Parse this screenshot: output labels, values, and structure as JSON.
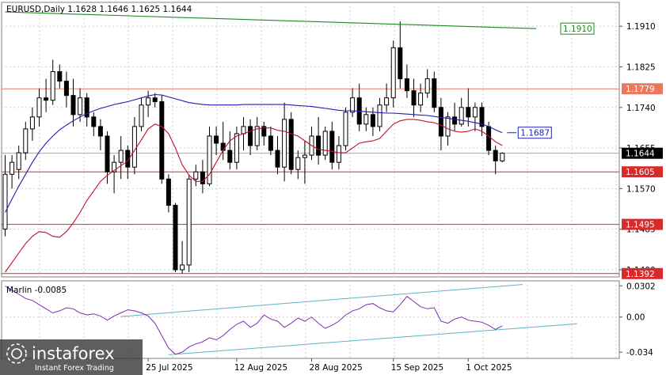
{
  "chart_data": [
    {
      "type": "candlestick",
      "header": "EURUSD,Daily  1.1628 1.1646 1.1625 1.1644",
      "y_axis_ticks": [
        "1.1910",
        "1.1825",
        "1.1740",
        "1.1655",
        "1.1570",
        "1.1485",
        "1.1400"
      ],
      "ylim": [
        1.1385,
        1.196
      ],
      "x_tick_labels": [
        "25 Jul 2025",
        "12 Aug 2025",
        "28 Aug 2025",
        "15 Sep 2025",
        "1 Oct 2025"
      ],
      "x_tick_index": [
        21,
        34,
        45,
        57,
        68
      ],
      "candles": [
        [
          1.1485,
          1.164,
          1.147,
          1.16
        ],
        [
          1.16,
          1.164,
          1.157,
          1.1625
        ],
        [
          1.161,
          1.166,
          1.159,
          1.1645
        ],
        [
          1.1645,
          1.171,
          1.163,
          1.1695
        ],
        [
          1.1695,
          1.174,
          1.167,
          1.172
        ],
        [
          1.172,
          1.178,
          1.17,
          1.176
        ],
        [
          1.176,
          1.18,
          1.173,
          1.1755
        ],
        [
          1.1755,
          1.184,
          1.1745,
          1.1815
        ],
        [
          1.1815,
          1.183,
          1.178,
          1.1795
        ],
        [
          1.1795,
          1.1815,
          1.174,
          1.1765
        ],
        [
          1.1765,
          1.18,
          1.17,
          1.1725
        ],
        [
          1.1725,
          1.178,
          1.171,
          1.176
        ],
        [
          1.176,
          1.177,
          1.17,
          1.172
        ],
        [
          1.172,
          1.173,
          1.168,
          1.17
        ],
        [
          1.17,
          1.1715,
          1.165,
          1.168
        ],
        [
          1.168,
          1.169,
          1.158,
          1.1605
        ],
        [
          1.1605,
          1.164,
          1.156,
          1.1625
        ],
        [
          1.1625,
          1.168,
          1.159,
          1.165
        ],
        [
          1.165,
          1.166,
          1.159,
          1.1615
        ],
        [
          1.1615,
          1.172,
          1.16,
          1.17
        ],
        [
          1.17,
          1.176,
          1.169,
          1.1745
        ],
        [
          1.1745,
          1.1775,
          1.172,
          1.176
        ],
        [
          1.176,
          1.177,
          1.174,
          1.1752
        ],
        [
          1.1752,
          1.1765,
          1.158,
          1.159
        ],
        [
          1.159,
          1.16,
          1.152,
          1.1535
        ],
        [
          1.1535,
          1.154,
          1.1395,
          1.14
        ],
        [
          1.14,
          1.146,
          1.1392,
          1.141
        ],
        [
          1.141,
          1.16,
          1.1395,
          1.159
        ],
        [
          1.159,
          1.162,
          1.1575,
          1.1605
        ],
        [
          1.1605,
          1.163,
          1.156,
          1.158
        ],
        [
          1.158,
          1.17,
          1.1575,
          1.168
        ],
        [
          1.168,
          1.17,
          1.164,
          1.1665
        ],
        [
          1.1665,
          1.171,
          1.163,
          1.165
        ],
        [
          1.165,
          1.169,
          1.161,
          1.1625
        ],
        [
          1.1625,
          1.17,
          1.161,
          1.1685
        ],
        [
          1.1685,
          1.172,
          1.165,
          1.17
        ],
        [
          1.17,
          1.1715,
          1.164,
          1.166
        ],
        [
          1.166,
          1.172,
          1.165,
          1.17
        ],
        [
          1.17,
          1.171,
          1.166,
          1.168
        ],
        [
          1.168,
          1.17,
          1.164,
          1.165
        ],
        [
          1.165,
          1.168,
          1.16,
          1.1615
        ],
        [
          1.1615,
          1.175,
          1.1585,
          1.1715
        ],
        [
          1.1715,
          1.173,
          1.16,
          1.161
        ],
        [
          1.161,
          1.165,
          1.159,
          1.1635
        ],
        [
          1.1635,
          1.167,
          1.158,
          1.164
        ],
        [
          1.164,
          1.17,
          1.163,
          1.168
        ],
        [
          1.168,
          1.172,
          1.162,
          1.164
        ],
        [
          1.164,
          1.17,
          1.163,
          1.169
        ],
        [
          1.169,
          1.171,
          1.161,
          1.1625
        ],
        [
          1.1625,
          1.168,
          1.161,
          1.166
        ],
        [
          1.166,
          1.174,
          1.165,
          1.173
        ],
        [
          1.173,
          1.178,
          1.172,
          1.176
        ],
        [
          1.176,
          1.179,
          1.169,
          1.1705
        ],
        [
          1.1705,
          1.174,
          1.169,
          1.1725
        ],
        [
          1.1725,
          1.174,
          1.168,
          1.17
        ],
        [
          1.17,
          1.176,
          1.169,
          1.1745
        ],
        [
          1.1745,
          1.179,
          1.173,
          1.176
        ],
        [
          1.176,
          1.188,
          1.174,
          1.1865
        ],
        [
          1.1865,
          1.192,
          1.178,
          1.18
        ],
        [
          1.18,
          1.183,
          1.176,
          1.1775
        ],
        [
          1.1775,
          1.18,
          1.172,
          1.1745
        ],
        [
          1.1745,
          1.179,
          1.173,
          1.177
        ],
        [
          1.177,
          1.182,
          1.176,
          1.18
        ],
        [
          1.18,
          1.1815,
          1.173,
          1.174
        ],
        [
          1.174,
          1.176,
          1.165,
          1.168
        ],
        [
          1.168,
          1.173,
          1.166,
          1.172
        ],
        [
          1.172,
          1.175,
          1.169,
          1.1705
        ],
        [
          1.1705,
          1.176,
          1.17,
          1.174
        ],
        [
          1.174,
          1.178,
          1.17,
          1.172
        ],
        [
          1.172,
          1.175,
          1.169,
          1.174
        ],
        [
          1.174,
          1.175,
          1.168,
          1.17
        ],
        [
          1.17,
          1.171,
          1.164,
          1.165
        ],
        [
          1.165,
          1.166,
          1.16,
          1.1628
        ],
        [
          1.1628,
          1.1646,
          1.1625,
          1.1644
        ]
      ],
      "ma_slow": [
        1.152,
        1.1548,
        1.1575,
        1.16,
        1.1625,
        1.1647,
        1.1665,
        1.168,
        1.1693,
        1.1703,
        1.1712,
        1.172,
        1.1727,
        1.1733,
        1.1738,
        1.1742,
        1.1746,
        1.1749,
        1.1752,
        1.1756,
        1.176,
        1.1764,
        1.1767,
        1.1766,
        1.1762,
        1.1758,
        1.1754,
        1.175,
        1.1748,
        1.1746,
        1.1745,
        1.1745,
        1.1745,
        1.1745,
        1.1745,
        1.1746,
        1.1746,
        1.1746,
        1.1746,
        1.1746,
        1.1746,
        1.1746,
        1.1745,
        1.1744,
        1.1743,
        1.1742,
        1.174,
        1.1738,
        1.1736,
        1.1734,
        1.1733,
        1.1733,
        1.1732,
        1.1731,
        1.173,
        1.1729,
        1.1728,
        1.1728,
        1.1727,
        1.1726,
        1.1725,
        1.1724,
        1.1723,
        1.1721,
        1.1719,
        1.1717,
        1.1715,
        1.1713,
        1.1711,
        1.1708,
        1.1705,
        1.17,
        1.1693,
        1.1687
      ],
      "ma_fast": [
        1.1395,
        1.1415,
        1.1435,
        1.1455,
        1.147,
        1.148,
        1.1478,
        1.147,
        1.1468,
        1.148,
        1.1498,
        1.152,
        1.1545,
        1.1565,
        1.1585,
        1.1598,
        1.1608,
        1.1618,
        1.1628,
        1.165,
        1.1672,
        1.1695,
        1.1705,
        1.17,
        1.1685,
        1.1655,
        1.162,
        1.1598,
        1.1585,
        1.1585,
        1.16,
        1.1625,
        1.165,
        1.167,
        1.168,
        1.1685,
        1.169,
        1.1695,
        1.1697,
        1.1697,
        1.1692,
        1.169,
        1.1685,
        1.168,
        1.167,
        1.166,
        1.1652,
        1.165,
        1.1648,
        1.1645,
        1.1645,
        1.1655,
        1.1665,
        1.1668,
        1.167,
        1.1675,
        1.169,
        1.1705,
        1.1712,
        1.1715,
        1.1715,
        1.1713,
        1.171,
        1.1708,
        1.1703,
        1.1695,
        1.169,
        1.1688,
        1.169,
        1.1695,
        1.169,
        1.168,
        1.1668,
        1.166
      ],
      "horizontal_levels": [
        {
          "value": 1.1779,
          "label": "1.1779",
          "color": "#e8795f",
          "label_bg": "#e8795f"
        },
        {
          "value": 1.1605,
          "label": "1.1605",
          "color": "#d72a2a",
          "label_bg": "#d72a2a"
        },
        {
          "value": 1.1495,
          "label": "1.1495",
          "color": "#d72a2a",
          "label_bg": "#d72a2a"
        },
        {
          "value": 1.1392,
          "label": "1.1392",
          "color": "#d72a2a",
          "label_bg": "#d72a2a"
        }
      ],
      "trendline": {
        "from_index": 0,
        "from_value": 1.194,
        "to_index": 78,
        "to_value": 1.1905,
        "label": "1.1910",
        "color": "#1e8a1e"
      },
      "ma_label": {
        "value": 1.1687,
        "label": "1.1687",
        "color": "#1f1faa"
      },
      "current_price": {
        "value": 1.1644,
        "label": "1.1644"
      }
    },
    {
      "type": "line",
      "title": "Marlin -0.0085",
      "y_axis_ticks": [
        "0.0302",
        "0.00",
        "-0.034"
      ],
      "tick_values": [
        0.0302,
        0.0,
        -0.034
      ],
      "ylim": [
        -0.04,
        0.035
      ],
      "values": [
        0.03,
        0.026,
        0.022,
        0.018,
        0.016,
        0.012,
        0.008,
        0.004,
        0.006,
        0.009,
        0.008,
        0.004,
        0.002,
        0.003,
        0.001,
        -0.003,
        0.001,
        0.004,
        0.007,
        0.006,
        0.004,
        0.001,
        -0.006,
        -0.018,
        -0.03,
        -0.036,
        -0.034,
        -0.029,
        -0.026,
        -0.024,
        -0.02,
        -0.022,
        -0.018,
        -0.012,
        -0.007,
        -0.004,
        -0.01,
        -0.006,
        0.002,
        -0.002,
        -0.004,
        -0.01,
        -0.006,
        -0.001,
        -0.004,
        0.0,
        -0.006,
        -0.011,
        -0.008,
        -0.004,
        0.002,
        0.006,
        0.008,
        0.012,
        0.013,
        0.009,
        0.006,
        0.005,
        0.012,
        0.02,
        0.015,
        0.01,
        0.008,
        0.009,
        -0.004,
        -0.006,
        -0.002,
        0.0,
        -0.003,
        -0.004,
        -0.005,
        -0.008,
        -0.012,
        -0.0085
      ],
      "channel_lines": [
        {
          "from_index": 17,
          "from_value": 0.0005,
          "to_index": 76,
          "to_value": 0.0315,
          "color": "#5fb3c7"
        },
        {
          "from_index": 24,
          "from_value": -0.0365,
          "to_index": 84,
          "to_value": -0.0065,
          "color": "#5fb3c7"
        }
      ]
    }
  ],
  "watermark": {
    "brand": "instaforex",
    "tagline": "Instant Forex Trading"
  }
}
